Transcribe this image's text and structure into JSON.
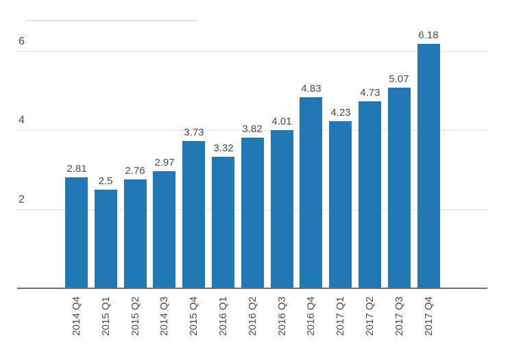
{
  "chart_data": {
    "type": "bar",
    "categories": [
      "2014 Q4",
      "2015 Q1",
      "2015 Q2",
      "2014 Q3",
      "2015 Q4",
      "2016 Q1",
      "2016 Q2",
      "2016 Q3",
      "2016 Q4",
      "2017 Q1",
      "2017 Q2",
      "2017 Q3",
      "2017 Q4"
    ],
    "values": [
      2.81,
      2.5,
      2.76,
      2.97,
      3.73,
      3.32,
      3.82,
      4.01,
      4.83,
      4.23,
      4.73,
      5.07,
      6.18
    ],
    "value_labels": [
      "2.81",
      "2.5",
      "2.76",
      "2.97",
      "3.73",
      "3.32",
      "3.82",
      "4.01",
      "4.83",
      "4.23",
      "4.73",
      "5.07",
      "6.18"
    ],
    "title": "",
    "xlabel": "",
    "ylabel": "",
    "ylim": [
      0,
      6.5
    ],
    "yticks": [
      2,
      4,
      6
    ],
    "ytick_labels": [
      "2",
      "4",
      "6"
    ],
    "grid": true,
    "legend": false,
    "colors": {
      "bar": "#2277b5",
      "value_label_text": "#4a4a4a",
      "tick_label_text": "#4a4a4a",
      "gridline": "#e2e2e2",
      "axis_line": "#6f6f6f",
      "top_rule": "#e3e3e3"
    }
  }
}
